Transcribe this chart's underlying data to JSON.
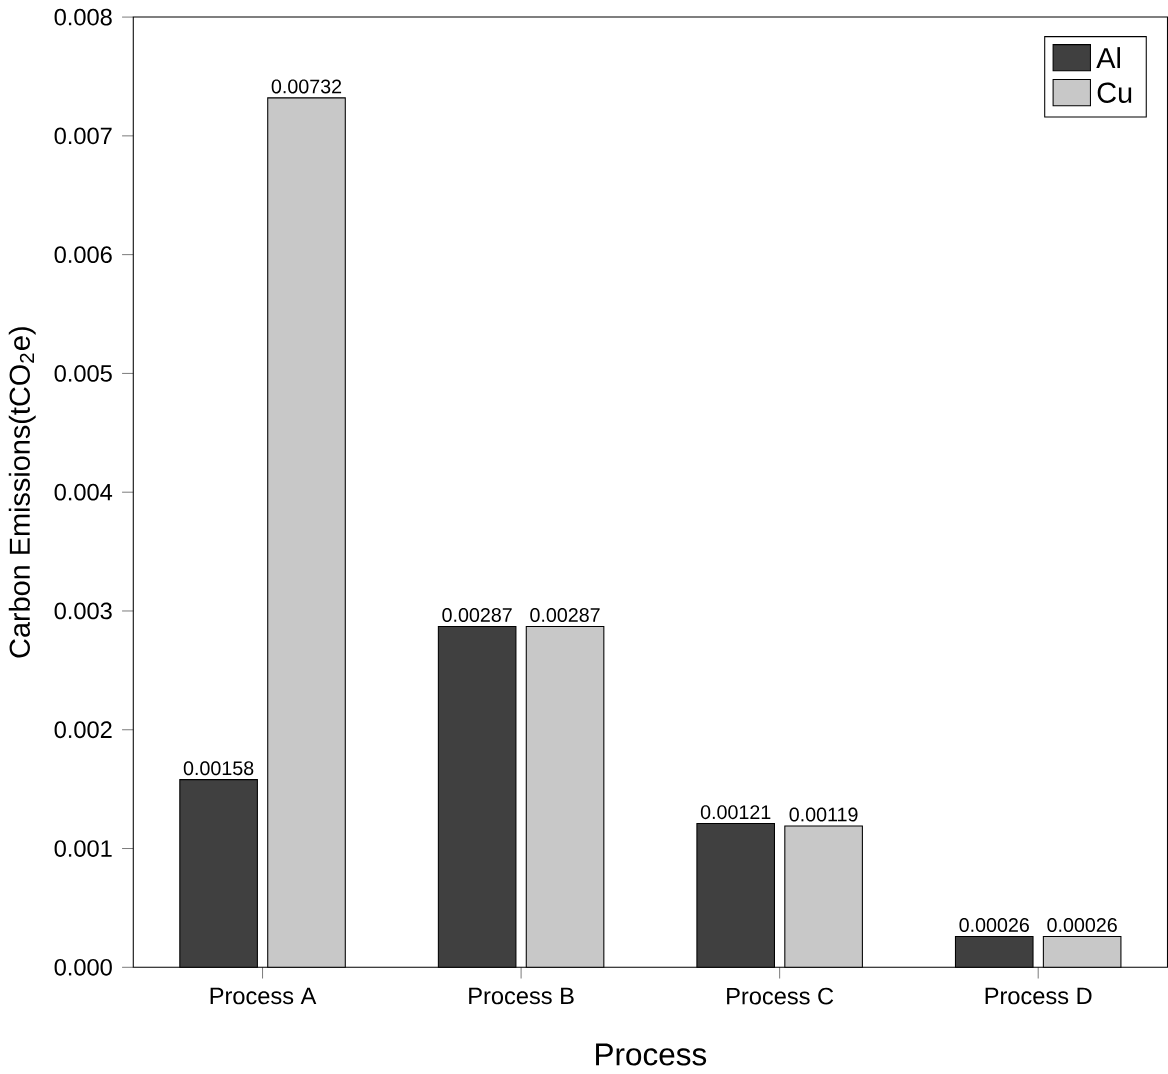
{
  "chart_data": {
    "type": "bar",
    "xlabel": "Process",
    "ylabel": "Carbon Emissions(tCO$_{2}$e)",
    "categories": [
      "Process A",
      "Process B",
      "Process C",
      "Process D"
    ],
    "series": [
      {
        "name": "Al",
        "color": "#404040",
        "values": [
          0.00158,
          0.00287,
          0.00121,
          0.00026
        ]
      },
      {
        "name": "Cu",
        "color": "#c8c8c8",
        "values": [
          0.00732,
          0.00287,
          0.00119,
          0.00026
        ]
      }
    ],
    "ylim": [
      0,
      0.008
    ],
    "yticks": [
      {
        "value": 0,
        "label": "0.000"
      },
      {
        "value": 0.001,
        "label": "0.001"
      },
      {
        "value": 0.002,
        "label": "0.002"
      },
      {
        "value": 0.003,
        "label": "0.003"
      },
      {
        "value": 0.004,
        "label": "0.004"
      },
      {
        "value": 0.005,
        "label": "0.005"
      },
      {
        "value": 0.006,
        "label": "0.006"
      },
      {
        "value": 0.007,
        "label": "0.007"
      },
      {
        "value": 0.008,
        "label": "0.008"
      }
    ],
    "data_labels": true,
    "legend": "top right",
    "grid": false
  }
}
